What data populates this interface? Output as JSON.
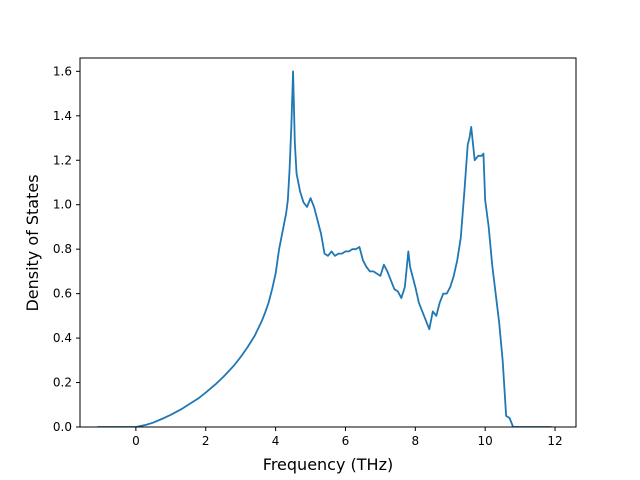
{
  "chart_data": {
    "type": "line",
    "title": "",
    "xlabel": "Frequency (THz)",
    "ylabel": "Density of States",
    "xlim": [
      -1.6,
      12.6
    ],
    "ylim": [
      0.0,
      1.66
    ],
    "xticks": [
      0,
      2,
      4,
      6,
      8,
      10,
      12
    ],
    "yticks": [
      0.0,
      0.2,
      0.4,
      0.6,
      0.8,
      1.0,
      1.2,
      1.4,
      1.6
    ],
    "xtick_labels": [
      "0",
      "2",
      "4",
      "6",
      "8",
      "10",
      "12"
    ],
    "ytick_labels": [
      "0.0",
      "0.2",
      "0.4",
      "0.6",
      "0.8",
      "1.0",
      "1.2",
      "1.4",
      "1.6"
    ],
    "grid": false,
    "legend": false,
    "line_color": "#1f77b4",
    "series": [
      {
        "x": [
          -1.1,
          -0.5,
          0.0,
          0.3,
          0.5,
          0.8,
          1.0,
          1.3,
          1.5,
          1.8,
          2.0,
          2.3,
          2.5,
          2.8,
          3.0,
          3.2,
          3.4,
          3.6,
          3.7,
          3.8,
          3.9,
          4.0,
          4.1,
          4.2,
          4.3,
          4.35,
          4.4,
          4.45,
          4.5,
          4.55,
          4.6,
          4.7,
          4.8,
          4.9,
          5.0,
          5.1,
          5.2,
          5.3,
          5.4,
          5.5,
          5.6,
          5.7,
          5.8,
          5.9,
          6.0,
          6.1,
          6.2,
          6.3,
          6.4,
          6.5,
          6.6,
          6.7,
          6.8,
          6.9,
          7.0,
          7.1,
          7.2,
          7.3,
          7.4,
          7.5,
          7.6,
          7.7,
          7.8,
          7.85,
          7.9,
          8.0,
          8.1,
          8.2,
          8.3,
          8.4,
          8.5,
          8.6,
          8.7,
          8.8,
          8.9,
          9.0,
          9.1,
          9.2,
          9.3,
          9.4,
          9.5,
          9.55,
          9.6,
          9.7,
          9.8,
          9.9,
          9.95,
          10.0,
          10.1,
          10.2,
          10.3,
          10.4,
          10.5,
          10.6,
          10.7,
          10.8,
          11.0,
          11.5,
          11.9
        ],
        "y": [
          0.0,
          0.0,
          0.0,
          0.01,
          0.02,
          0.04,
          0.055,
          0.08,
          0.1,
          0.13,
          0.155,
          0.195,
          0.225,
          0.275,
          0.315,
          0.36,
          0.41,
          0.475,
          0.515,
          0.56,
          0.62,
          0.69,
          0.8,
          0.88,
          0.96,
          1.02,
          1.16,
          1.35,
          1.6,
          1.28,
          1.14,
          1.06,
          1.01,
          0.99,
          1.03,
          0.99,
          0.93,
          0.87,
          0.78,
          0.77,
          0.79,
          0.77,
          0.78,
          0.78,
          0.79,
          0.79,
          0.8,
          0.8,
          0.81,
          0.75,
          0.72,
          0.7,
          0.7,
          0.69,
          0.68,
          0.73,
          0.7,
          0.66,
          0.62,
          0.61,
          0.58,
          0.63,
          0.79,
          0.72,
          0.69,
          0.63,
          0.56,
          0.52,
          0.48,
          0.44,
          0.52,
          0.5,
          0.56,
          0.6,
          0.6,
          0.63,
          0.68,
          0.75,
          0.85,
          1.05,
          1.27,
          1.3,
          1.35,
          1.2,
          1.22,
          1.22,
          1.23,
          1.02,
          0.9,
          0.73,
          0.6,
          0.47,
          0.3,
          0.05,
          0.04,
          0.0,
          0.0,
          0.0,
          0.0
        ]
      }
    ]
  }
}
